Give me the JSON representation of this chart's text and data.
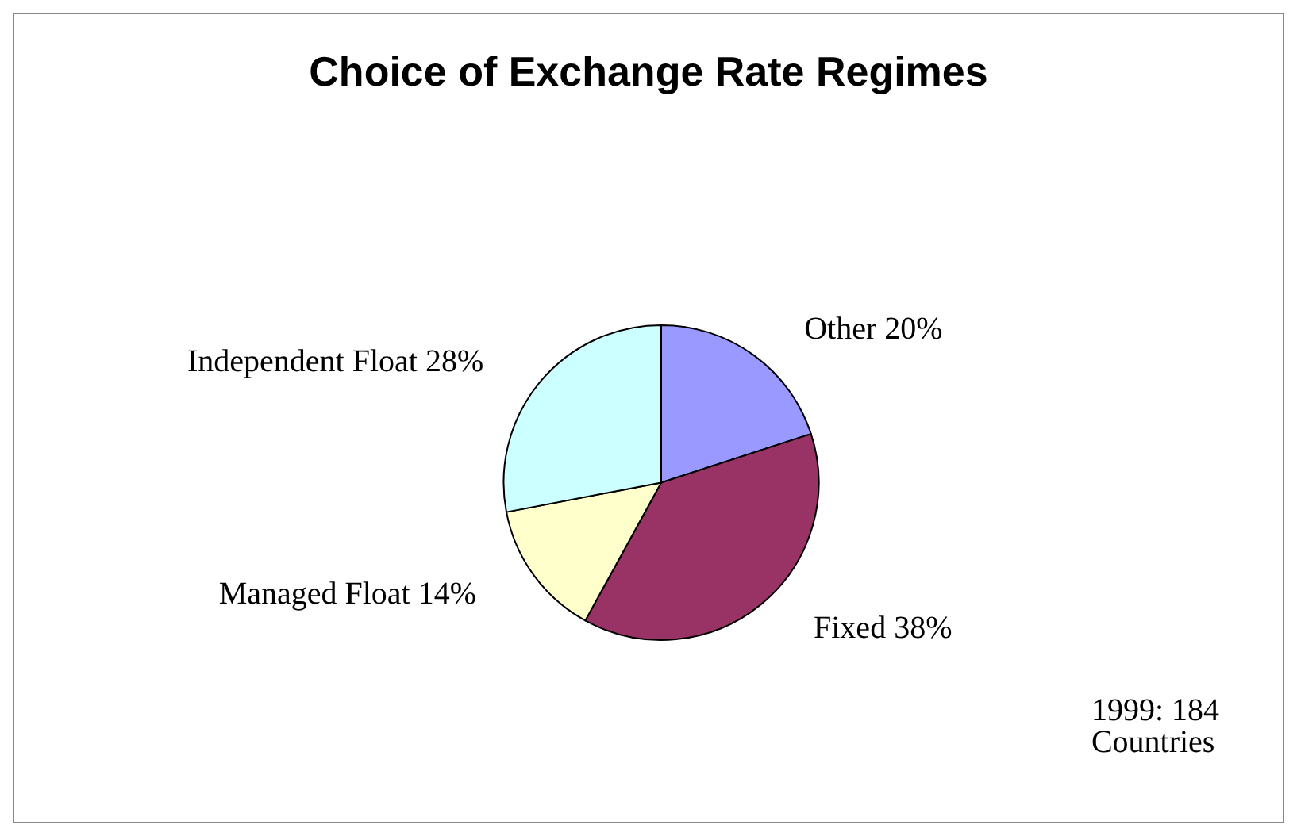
{
  "chart_data": {
    "type": "pie",
    "title": "Choice of Exchange Rate Regimes",
    "categories": [
      "Other",
      "Fixed",
      "Managed Float",
      "Independent Float"
    ],
    "values": [
      20,
      38,
      14,
      28
    ],
    "value_labels": [
      "20%",
      "38%",
      "14%",
      "28%"
    ],
    "colors": [
      "#9999ff",
      "#993366",
      "#ffffcc",
      "#ccffff"
    ],
    "annotations": [
      "1999: 184\nCountries"
    ],
    "legend": false
  }
}
